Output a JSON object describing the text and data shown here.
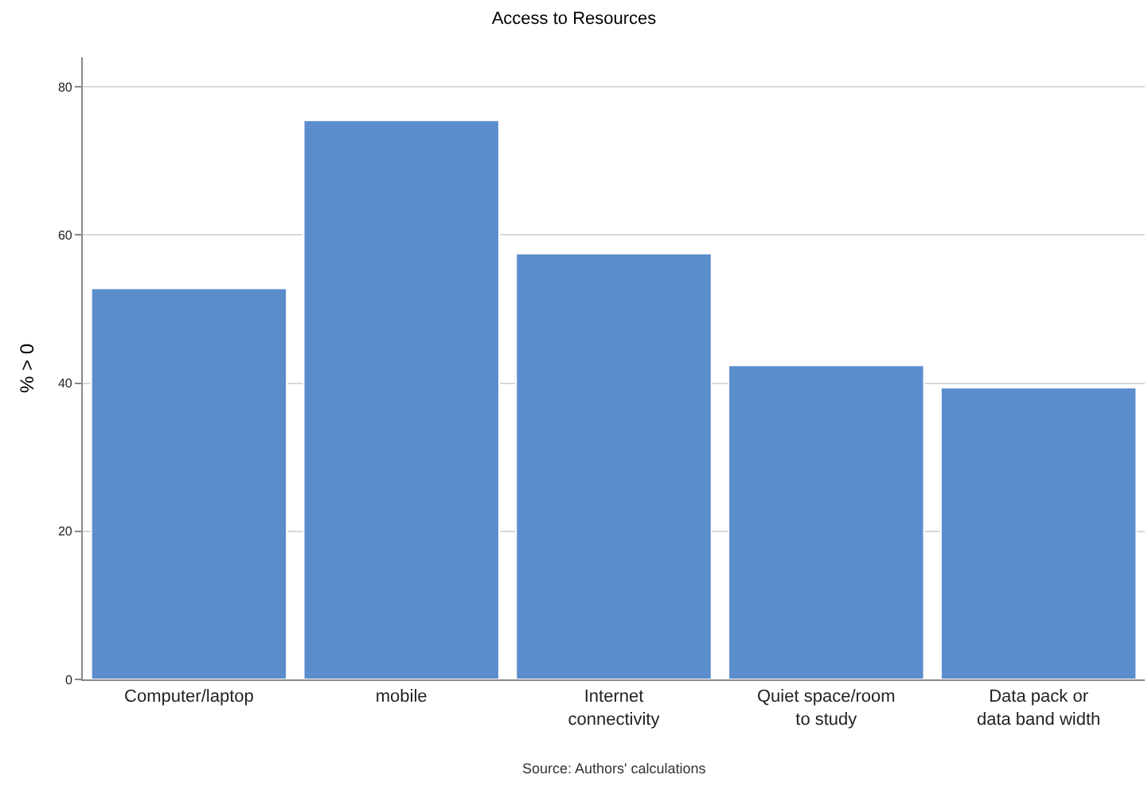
{
  "chart_data": {
    "type": "bar",
    "title": "Access to Resources",
    "ylabel": "% > 0",
    "categories": [
      "Computer/laptop",
      "mobile",
      "Internet connectivity",
      "Quiet space/room to study",
      "Data pack or data band width"
    ],
    "values": [
      52.8,
      75.5,
      57.5,
      42.4,
      39.4
    ],
    "color": "#5b8ccc",
    "ylim": [
      0,
      84
    ],
    "yticks": [
      0,
      20,
      40,
      60,
      80
    ],
    "grid": "y",
    "annotations": [
      "Source: Authors' calculations"
    ]
  }
}
